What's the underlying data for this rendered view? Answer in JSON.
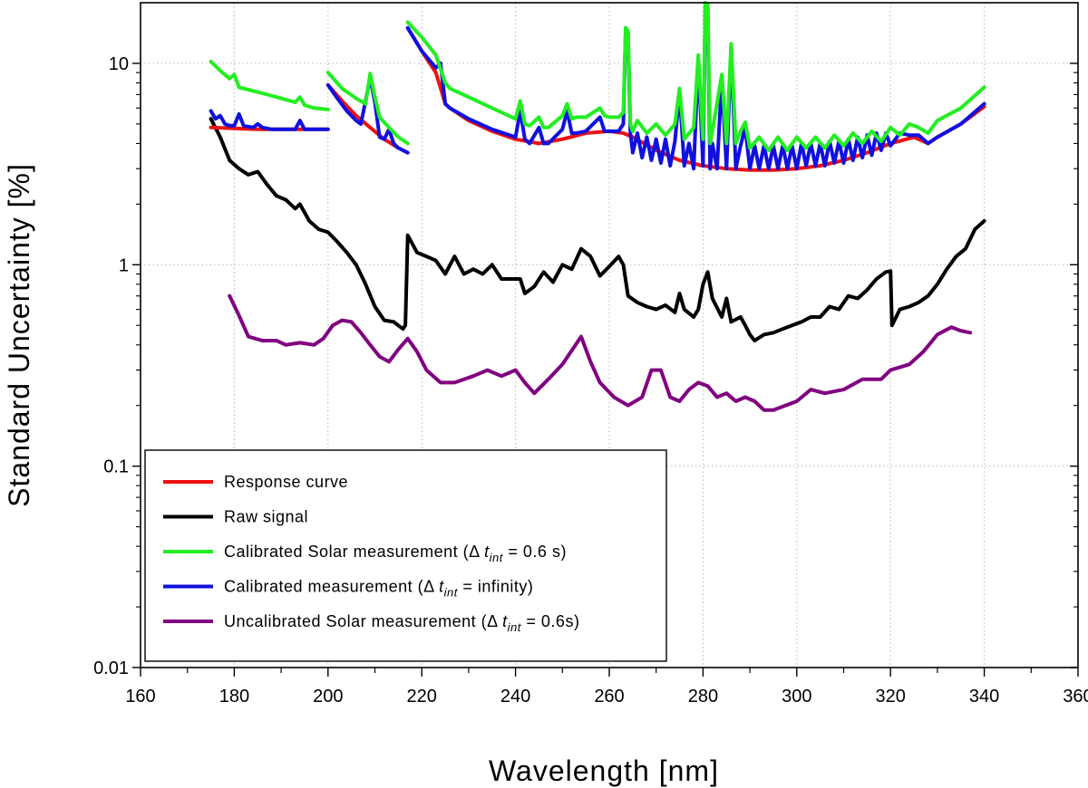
{
  "chart_data": {
    "type": "line",
    "title": "",
    "xlabel": "Wavelength [nm]",
    "ylabel": "Standard Uncertainty [%]",
    "xlim": [
      160,
      360
    ],
    "ylim": [
      0.01,
      20
    ],
    "yscale": "log",
    "grid": true,
    "legend_position": "bottom-left",
    "x_ticks": [
      160,
      180,
      200,
      220,
      240,
      260,
      280,
      300,
      320,
      340,
      360
    ],
    "x_tick_labels": [
      "160",
      "180",
      "200",
      "220",
      "240",
      "260",
      "280",
      "300",
      "320",
      "340",
      "360"
    ],
    "y_ticks": [
      0.01,
      0.1,
      1,
      10
    ],
    "y_tick_labels": [
      "0.01",
      "0.1",
      "1",
      "10"
    ],
    "series": [
      {
        "name": "Uncalibrated Solar measurement",
        "legend": {
          "prefix": "Uncalibrated Solar measurement (",
          "delta": "Δ",
          "t": "t",
          "sub": "int",
          "suffix": " = 0.6s)"
        },
        "color": "#800080",
        "segments": [
          {
            "x": [
              179,
              181,
              183,
              186,
              189,
              191,
              194,
              197,
              199,
              201,
              203,
              205,
              207,
              209,
              211,
              213,
              215,
              217,
              219,
              221,
              224,
              227,
              231,
              234,
              237,
              240,
              242,
              244,
              247,
              250,
              254,
              256,
              258,
              261,
              264,
              267,
              269,
              271,
              273,
              275,
              277,
              279,
              281,
              283,
              285,
              287,
              289,
              291,
              293,
              295,
              300,
              303,
              306,
              310,
              314,
              318,
              320,
              324,
              327,
              330,
              333,
              335,
              337
            ],
            "y": [
              0.7,
              0.56,
              0.44,
              0.42,
              0.42,
              0.4,
              0.41,
              0.4,
              0.43,
              0.5,
              0.53,
              0.52,
              0.46,
              0.4,
              0.35,
              0.33,
              0.38,
              0.43,
              0.37,
              0.3,
              0.26,
              0.26,
              0.28,
              0.3,
              0.28,
              0.3,
              0.26,
              0.23,
              0.27,
              0.32,
              0.44,
              0.33,
              0.26,
              0.22,
              0.2,
              0.22,
              0.3,
              0.3,
              0.22,
              0.21,
              0.24,
              0.26,
              0.25,
              0.22,
              0.23,
              0.21,
              0.22,
              0.21,
              0.19,
              0.19,
              0.21,
              0.24,
              0.23,
              0.24,
              0.27,
              0.27,
              0.3,
              0.32,
              0.37,
              0.45,
              0.49,
              0.47,
              0.46
            ]
          }
        ]
      },
      {
        "name": "Raw signal",
        "legend": {
          "prefix": "Raw signal",
          "delta": "",
          "t": "",
          "sub": "",
          "suffix": ""
        },
        "color": "#000000",
        "segments": [
          {
            "x": [
              175,
              177,
              179,
              181,
              183,
              185,
              187,
              189,
              191,
              193,
              194,
              196,
              198,
              200,
              202,
              204,
              206,
              208,
              210,
              212,
              214,
              216,
              216.5,
              217,
              219,
              221,
              223,
              225,
              227,
              229,
              231,
              233,
              235,
              237,
              239,
              241,
              242,
              244,
              246,
              248,
              250,
              252,
              254,
              256,
              258,
              260,
              262,
              263,
              264,
              266,
              268,
              270,
              272,
              274,
              275,
              276,
              278,
              279,
              280,
              281,
              282,
              284,
              285,
              286,
              288,
              289,
              290,
              291,
              293,
              295,
              297,
              299,
              301,
              303,
              305,
              307,
              309,
              311,
              313,
              315,
              317,
              319,
              320,
              320.3,
              322,
              324,
              326,
              328,
              330,
              332,
              334,
              336,
              338,
              340
            ],
            "y": [
              5.3,
              4.3,
              3.3,
              3.0,
              2.8,
              2.9,
              2.5,
              2.2,
              2.1,
              1.9,
              2.0,
              1.65,
              1.5,
              1.45,
              1.3,
              1.15,
              1.0,
              0.8,
              0.62,
              0.53,
              0.52,
              0.48,
              0.5,
              1.4,
              1.15,
              1.1,
              1.05,
              0.9,
              1.1,
              0.9,
              0.95,
              0.9,
              1.0,
              0.85,
              0.85,
              0.85,
              0.72,
              0.78,
              0.92,
              0.82,
              1.0,
              0.95,
              1.2,
              1.1,
              0.88,
              0.98,
              1.1,
              1.0,
              0.7,
              0.65,
              0.62,
              0.6,
              0.63,
              0.58,
              0.72,
              0.6,
              0.55,
              0.6,
              0.8,
              0.92,
              0.68,
              0.55,
              0.68,
              0.52,
              0.55,
              0.5,
              0.45,
              0.42,
              0.45,
              0.46,
              0.48,
              0.5,
              0.52,
              0.55,
              0.55,
              0.62,
              0.6,
              0.7,
              0.68,
              0.75,
              0.85,
              0.92,
              0.93,
              0.5,
              0.6,
              0.62,
              0.65,
              0.7,
              0.8,
              0.95,
              1.1,
              1.2,
              1.5,
              1.65
            ]
          }
        ]
      },
      {
        "name": "Response curve",
        "legend": {
          "prefix": "Response curve",
          "delta": "",
          "t": "",
          "sub": "",
          "suffix": ""
        },
        "color": "#ee1111",
        "segments": [
          {
            "x": [
              175,
              180,
              185,
              190,
              195,
              200
            ],
            "y": [
              4.8,
              4.75,
              4.7,
              4.7,
              4.7,
              4.7
            ]
          },
          {
            "x": [
              200,
              203,
              206,
              209,
              212,
              215,
              217
            ],
            "y": [
              7.8,
              6.5,
              5.5,
              4.8,
              4.2,
              3.8,
              3.6
            ]
          },
          {
            "x": [
              217,
              220,
              223,
              225,
              226,
              230,
              235,
              240,
              245,
              250,
              255,
              260,
              263,
              265,
              270,
              275,
              280,
              285,
              290,
              295,
              300,
              305,
              310,
              315,
              320,
              325,
              328,
              330,
              335,
              340
            ],
            "y": [
              15.0,
              11.5,
              9.0,
              6.3,
              6.0,
              5.2,
              4.6,
              4.2,
              4.0,
              4.2,
              4.5,
              4.6,
              4.5,
              4.3,
              3.7,
              3.3,
              3.1,
              3.0,
              2.95,
              2.95,
              3.0,
              3.1,
              3.3,
              3.6,
              4.0,
              4.3,
              4.0,
              4.3,
              5.0,
              6.1
            ]
          }
        ]
      },
      {
        "name": "Calibrated measurement",
        "legend": {
          "prefix": "Calibrated measurement (",
          "delta": "Δ",
          "t": "t",
          "sub": "int",
          "suffix": " = infinity)"
        },
        "color": "#1010e0",
        "segments": [
          {
            "x": [
              175,
              176,
              177,
              178,
              179,
              180,
              181,
              182,
              184,
              185,
              186,
              188,
              190,
              192,
              193,
              194,
              195,
              197,
              200
            ],
            "y": [
              5.8,
              5.3,
              5.5,
              5.0,
              4.9,
              4.9,
              5.6,
              4.9,
              4.8,
              5.0,
              4.8,
              4.7,
              4.7,
              4.7,
              4.7,
              5.2,
              4.7,
              4.7,
              4.7
            ]
          },
          {
            "x": [
              200,
              202,
              204,
              206,
              207,
              208,
              209,
              210,
              211,
              212,
              213,
              214,
              215,
              217
            ],
            "y": [
              7.8,
              6.7,
              5.8,
              5.2,
              5.0,
              6.5,
              8.5,
              6.4,
              4.3,
              4.2,
              4.7,
              4.0,
              3.8,
              3.6
            ]
          },
          {
            "x": [
              217,
              220,
              223,
              224,
              225,
              226,
              230,
              235,
              240,
              241,
              242,
              243,
              245,
              246,
              247,
              250,
              251,
              252,
              253,
              255,
              258,
              259,
              260,
              262,
              263,
              263.5,
              264,
              264.5,
              265,
              266,
              267,
              268,
              269,
              270,
              271,
              272,
              273,
              274,
              275,
              276,
              277,
              278,
              279,
              280,
              280.5,
              281,
              281.5,
              282,
              283,
              284,
              285,
              286,
              287,
              288,
              289,
              290,
              291,
              292,
              293,
              294,
              295,
              296,
              297,
              298,
              299,
              300,
              301,
              302,
              303,
              304,
              305,
              306,
              307,
              308,
              309,
              310,
              311,
              312,
              313,
              314,
              315,
              316,
              317,
              318,
              319,
              320,
              322,
              324,
              326,
              328,
              330,
              335,
              340
            ],
            "y": [
              15.0,
              11.5,
              9.5,
              10.0,
              6.3,
              6.0,
              5.3,
              4.7,
              4.3,
              5.8,
              4.2,
              4.0,
              4.8,
              4.0,
              4.0,
              4.7,
              5.8,
              4.5,
              4.5,
              4.6,
              5.4,
              4.6,
              4.6,
              4.6,
              5.0,
              15.0,
              14.0,
              4.5,
              3.6,
              4.5,
              3.4,
              4.3,
              3.3,
              4.2,
              3.2,
              4.2,
              3.1,
              4.1,
              7.2,
              3.1,
              4.0,
              3.0,
              10.5,
              3.1,
              20.0,
              19.0,
              3.0,
              4.0,
              3.0,
              8.5,
              3.0,
              12.0,
              3.0,
              3.9,
              4.8,
              3.0,
              3.9,
              3.0,
              3.9,
              3.0,
              3.9,
              3.0,
              3.9,
              3.0,
              3.9,
              3.0,
              4.0,
              3.1,
              4.0,
              3.1,
              4.0,
              3.1,
              4.1,
              3.2,
              4.1,
              3.2,
              4.2,
              3.3,
              4.3,
              3.4,
              4.4,
              3.5,
              4.5,
              3.7,
              4.5,
              3.9,
              4.5,
              4.4,
              4.4,
              4.0,
              4.3,
              5.0,
              6.3
            ]
          }
        ]
      },
      {
        "name": "Calibrated Solar measurement",
        "legend": {
          "prefix": "Calibrated Solar measurement (",
          "delta": "Δ",
          "t": "t",
          "sub": "int",
          "suffix": " = 0.6 s)"
        },
        "color": "#22ee22",
        "segments": [
          {
            "x": [
              175,
              177,
              179,
              180,
              181,
              183,
              186,
              190,
              193,
              194,
              195,
              197,
              200
            ],
            "y": [
              10.2,
              9.2,
              8.4,
              8.8,
              7.6,
              7.4,
              7.1,
              6.7,
              6.4,
              6.8,
              6.2,
              6.0,
              5.9
            ]
          },
          {
            "x": [
              200,
              203,
              206,
              208,
              209,
              210,
              211,
              213,
              215,
              217
            ],
            "y": [
              9.0,
              7.5,
              6.7,
              6.3,
              8.9,
              6.8,
              5.4,
              4.8,
              4.3,
              4.0
            ]
          },
          {
            "x": [
              217,
              220,
              223,
              225,
              226,
              230,
              235,
              240,
              241,
              242,
              243,
              245,
              246,
              247,
              250,
              251,
              252,
              253,
              255,
              258,
              259,
              260,
              262,
              263,
              263.5,
              264,
              264.5,
              265,
              266,
              268,
              270,
              272,
              274,
              275,
              276,
              278,
              279,
              280,
              280.5,
              281,
              281.5,
              282,
              284,
              285,
              286,
              287,
              288,
              289,
              290,
              292,
              294,
              296,
              298,
              300,
              302,
              304,
              306,
              308,
              310,
              312,
              314,
              316,
              318,
              320,
              322,
              324,
              326,
              328,
              330,
              335,
              340
            ],
            "y": [
              16.0,
              13.5,
              11.0,
              8.0,
              7.5,
              6.8,
              6.0,
              5.3,
              6.5,
              5.0,
              4.9,
              5.4,
              4.8,
              4.8,
              5.5,
              6.3,
              5.3,
              5.4,
              5.4,
              6.0,
              5.5,
              5.4,
              5.4,
              5.7,
              15.0,
              14.5,
              5.0,
              4.6,
              5.2,
              4.5,
              5.0,
              4.4,
              5.0,
              7.5,
              4.2,
              4.8,
              11.0,
              4.2,
              20.0,
              19.5,
              4.0,
              4.6,
              8.8,
              4.0,
              12.5,
              4.0,
              4.6,
              5.1,
              3.8,
              4.3,
              3.7,
              4.3,
              3.7,
              4.3,
              3.8,
              4.3,
              3.8,
              4.4,
              3.9,
              4.5,
              4.0,
              4.6,
              4.1,
              4.8,
              4.4,
              5.0,
              4.8,
              4.5,
              5.2,
              6.0,
              7.6
            ]
          }
        ]
      }
    ]
  }
}
